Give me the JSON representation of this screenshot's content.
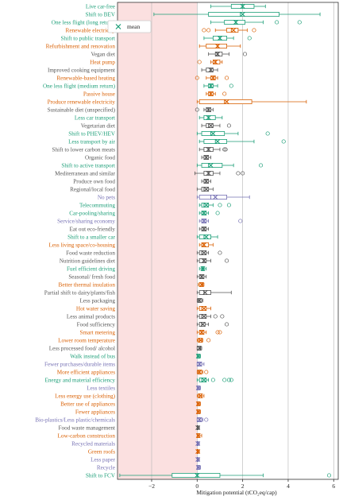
{
  "chart_data": {
    "type": "box",
    "title": "",
    "xlabel": "Mitigation potential (tCO₂eq/cap)",
    "ylabel": "",
    "xlim": [
      -3.5,
      6.2
    ],
    "x_ticks": [
      -2,
      0,
      2,
      4,
      6
    ],
    "grid": "vertical",
    "shaded_region": {
      "from": -3.5,
      "to": 0,
      "color": "#fbe0e0"
    },
    "legend": {
      "placement": "top-left",
      "entries": [
        {
          "label": "mean",
          "marker": "x"
        }
      ]
    },
    "series_colors": {
      "green": "#1b9e77",
      "orange": "#d95f02",
      "purple": "#7570b3",
      "dark": "#555555"
    },
    "rows": [
      {
        "label": "Live car-free",
        "color": "green",
        "q1": 1.5,
        "median": 2.0,
        "q3": 2.5,
        "wlo": 0.6,
        "whi": 3.0,
        "mean": 2.0,
        "outliers": []
      },
      {
        "label": "Shift to BEV",
        "color": "green",
        "q1": 0.5,
        "median": 1.9,
        "q3": 3.6,
        "wlo": -1.9,
        "whi": 5.4,
        "mean": 2.0,
        "outliers": []
      },
      {
        "label": "One less flight (long return)",
        "color": "green",
        "q1": 1.2,
        "median": 1.7,
        "q3": 2.1,
        "wlo": 0.6,
        "whi": 2.9,
        "mean": 1.7,
        "outliers": [
          3.5,
          4.5
        ]
      },
      {
        "label": "Renewable electricity",
        "color": "orange",
        "q1": 1.3,
        "median": 1.5,
        "q3": 1.8,
        "wlo": 0.8,
        "whi": 2.2,
        "mean": 1.6,
        "outliers": [
          0.3,
          0.5,
          2.5
        ]
      },
      {
        "label": "Shift to public transport",
        "color": "green",
        "q1": 0.7,
        "median": 1.0,
        "q3": 1.3,
        "wlo": 0.3,
        "whi": 1.6,
        "mean": 1.0,
        "outliers": [
          2.3
        ]
      },
      {
        "label": "Refurbishment and renovation",
        "color": "orange",
        "q1": 0.4,
        "median": 0.9,
        "q3": 1.3,
        "wlo": 0.1,
        "whi": 1.9,
        "mean": 0.9,
        "outliers": []
      },
      {
        "label": "Vegan diet",
        "color": "dark",
        "q1": 0.8,
        "median": 0.9,
        "q3": 1.1,
        "wlo": 0.5,
        "whi": 1.4,
        "mean": 0.9,
        "outliers": [
          2.1
        ]
      },
      {
        "label": "Heat pump",
        "color": "orange",
        "q1": 0.7,
        "median": 0.8,
        "q3": 1.0,
        "wlo": 0.6,
        "whi": 1.1,
        "mean": 0.8,
        "outliers": [
          0.1
        ]
      },
      {
        "label": "Improved cooking equipment",
        "color": "dark",
        "q1": 0.4,
        "median": 0.6,
        "q3": 0.7,
        "wlo": 0.2,
        "whi": 0.9,
        "mean": 0.6,
        "outliers": []
      },
      {
        "label": "Renewable-based heating",
        "color": "orange",
        "q1": 0.6,
        "median": 0.7,
        "q3": 0.8,
        "wlo": 0.4,
        "whi": 0.9,
        "mean": 0.7,
        "outliers": [
          0.0,
          1.3
        ]
      },
      {
        "label": "One less flight (medium return)",
        "color": "green",
        "q1": 0.5,
        "median": 0.6,
        "q3": 0.7,
        "wlo": 0.3,
        "whi": 0.9,
        "mean": 0.6,
        "outliers": [
          1.5
        ]
      },
      {
        "label": "Passive house",
        "color": "orange",
        "q1": 0.5,
        "median": 0.6,
        "q3": 0.7,
        "wlo": 0.4,
        "whi": 0.8,
        "mean": 0.6,
        "outliers": [
          1.2
        ]
      },
      {
        "label": "Produce renewable electricity",
        "color": "orange",
        "q1": 0.1,
        "median": 1.2,
        "q3": 2.4,
        "wlo": 0.0,
        "whi": 4.8,
        "mean": 1.3,
        "outliers": []
      },
      {
        "label": "Sustainable diet (unspecified)",
        "color": "dark",
        "q1": 0.4,
        "median": 0.5,
        "q3": 0.6,
        "wlo": 0.3,
        "whi": 0.7,
        "mean": 0.5,
        "outliers": [
          0.0
        ]
      },
      {
        "label": "Less car transport",
        "color": "green",
        "q1": 0.3,
        "median": 0.5,
        "q3": 0.8,
        "wlo": 0.1,
        "whi": 1.1,
        "mean": 0.5,
        "outliers": []
      },
      {
        "label": "Vegetarian diet",
        "color": "dark",
        "q1": 0.4,
        "median": 0.5,
        "q3": 0.7,
        "wlo": 0.2,
        "whi": 1.0,
        "mean": 0.6,
        "outliers": [
          1.4
        ]
      },
      {
        "label": "Shift to PHEV/HEV",
        "color": "green",
        "q1": 0.2,
        "median": 0.6,
        "q3": 1.2,
        "wlo": 0.0,
        "whi": 1.8,
        "mean": 0.7,
        "outliers": [
          3.1
        ]
      },
      {
        "label": "Less transport by air",
        "color": "green",
        "q1": 0.3,
        "median": 0.8,
        "q3": 1.3,
        "wlo": 0.1,
        "whi": 2.5,
        "mean": 0.9,
        "outliers": [
          3.8
        ]
      },
      {
        "label": "Shift to lower carbon meats",
        "color": "dark",
        "q1": 0.3,
        "median": 0.5,
        "q3": 0.7,
        "wlo": 0.1,
        "whi": 1.0,
        "mean": 0.5,
        "outliers": [
          1.2,
          1.25
        ]
      },
      {
        "label": "Organic food",
        "color": "dark",
        "q1": 0.3,
        "median": 0.4,
        "q3": 0.5,
        "wlo": 0.2,
        "whi": 0.6,
        "mean": 0.4,
        "outliers": []
      },
      {
        "label": "Shift to active transport",
        "color": "green",
        "q1": 0.2,
        "median": 0.5,
        "q3": 1.1,
        "wlo": 0.0,
        "whi": 1.6,
        "mean": 0.6,
        "outliers": [
          2.8
        ]
      },
      {
        "label": "Mediterranean and similar",
        "color": "dark",
        "q1": 0.3,
        "median": 0.5,
        "q3": 0.7,
        "wlo": -0.1,
        "whi": 1.0,
        "mean": 0.5,
        "outliers": [
          1.8,
          2.0
        ]
      },
      {
        "label": "Produce own food",
        "color": "dark",
        "q1": 0.3,
        "median": 0.4,
        "q3": 0.5,
        "wlo": 0.2,
        "whi": 0.6,
        "mean": 0.4,
        "outliers": []
      },
      {
        "label": "Regional/local food",
        "color": "dark",
        "q1": 0.2,
        "median": 0.3,
        "q3": 0.5,
        "wlo": 0.0,
        "whi": 0.7,
        "mean": 0.4,
        "outliers": []
      },
      {
        "label": "No pets",
        "color": "purple",
        "q1": 0.1,
        "median": 0.6,
        "q3": 1.3,
        "wlo": 0.0,
        "whi": 2.3,
        "mean": 0.8,
        "outliers": []
      },
      {
        "label": "Telecommuting",
        "color": "green",
        "q1": 0.2,
        "median": 0.3,
        "q3": 0.5,
        "wlo": 0.1,
        "whi": 0.7,
        "mean": 0.4,
        "outliers": [
          1.0,
          1.4
        ]
      },
      {
        "label": "Car-pooling/sharing",
        "color": "green",
        "q1": 0.2,
        "median": 0.3,
        "q3": 0.4,
        "wlo": 0.1,
        "whi": 0.5,
        "mean": 0.3,
        "outliers": [
          0.9
        ]
      },
      {
        "label": "Service/sharing economy",
        "color": "purple",
        "q1": 0.2,
        "median": 0.3,
        "q3": 0.4,
        "wlo": 0.1,
        "whi": 0.5,
        "mean": 0.3,
        "outliers": [
          1.9
        ]
      },
      {
        "label": "Eat out eco-friendly",
        "color": "dark",
        "q1": 0.2,
        "median": 0.3,
        "q3": 0.4,
        "wlo": 0.1,
        "whi": 0.5,
        "mean": 0.3,
        "outliers": []
      },
      {
        "label": "Shift to a smaller car",
        "color": "green",
        "q1": 0.1,
        "median": 0.3,
        "q3": 0.6,
        "wlo": 0.0,
        "whi": 0.9,
        "mean": 0.4,
        "outliers": []
      },
      {
        "label": "Less living space/co-housing",
        "color": "orange",
        "q1": 0.2,
        "median": 0.3,
        "q3": 0.5,
        "wlo": 0.1,
        "whi": 0.7,
        "mean": 0.3,
        "outliers": []
      },
      {
        "label": "Food waste reduction",
        "color": "dark",
        "q1": 0.1,
        "median": 0.2,
        "q3": 0.4,
        "wlo": 0.0,
        "whi": 0.5,
        "mean": 0.3,
        "outliers": [
          1.0
        ]
      },
      {
        "label": "Nutrition guidelines diet",
        "color": "dark",
        "q1": 0.1,
        "median": 0.3,
        "q3": 0.4,
        "wlo": 0.0,
        "whi": 0.6,
        "mean": 0.3,
        "outliers": [
          1.3
        ]
      },
      {
        "label": "Fuel efficient driving",
        "color": "green",
        "q1": 0.2,
        "median": 0.25,
        "q3": 0.3,
        "wlo": 0.1,
        "whi": 0.4,
        "mean": 0.25,
        "outliers": []
      },
      {
        "label": "Seasonal/ fresh food",
        "color": "dark",
        "q1": 0.1,
        "median": 0.2,
        "q3": 0.3,
        "wlo": 0.0,
        "whi": 0.4,
        "mean": 0.2,
        "outliers": []
      },
      {
        "label": "Better thermal insulation",
        "color": "orange",
        "q1": 0.1,
        "median": 0.2,
        "q3": 0.25,
        "wlo": 0.05,
        "whi": 0.3,
        "mean": 0.2,
        "outliers": []
      },
      {
        "label": "Partial shift to dairy/plants/fish",
        "color": "dark",
        "q1": 0.1,
        "median": 0.3,
        "q3": 0.6,
        "wlo": 0.0,
        "whi": 1.5,
        "mean": 0.35,
        "outliers": []
      },
      {
        "label": "Less packaging",
        "color": "dark",
        "q1": 0.05,
        "median": 0.1,
        "q3": 0.2,
        "wlo": 0.0,
        "whi": 0.25,
        "mean": 0.1,
        "outliers": []
      },
      {
        "label": "Hot water saving",
        "color": "orange",
        "q1": 0.1,
        "median": 0.2,
        "q3": 0.4,
        "wlo": 0.0,
        "whi": 0.6,
        "mean": 0.3,
        "outliers": []
      },
      {
        "label": "Less animal products",
        "color": "dark",
        "q1": 0.1,
        "median": 0.2,
        "q3": 0.4,
        "wlo": 0.0,
        "whi": 0.6,
        "mean": 0.3,
        "outliers": [
          0.8,
          1.1
        ]
      },
      {
        "label": "Food sufficiency",
        "color": "dark",
        "q1": 0.1,
        "median": 0.2,
        "q3": 0.35,
        "wlo": 0.0,
        "whi": 0.5,
        "mean": 0.25,
        "outliers": [
          1.3
        ]
      },
      {
        "label": "Smart metering",
        "color": "orange",
        "q1": 0.1,
        "median": 0.2,
        "q3": 0.3,
        "wlo": 0.0,
        "whi": 0.4,
        "mean": 0.2,
        "outliers": [
          0.9,
          1.0
        ]
      },
      {
        "label": "Lower room temperature",
        "color": "orange",
        "q1": 0.05,
        "median": 0.1,
        "q3": 0.2,
        "wlo": 0.0,
        "whi": 0.25,
        "mean": 0.15,
        "outliers": [
          0.5
        ]
      },
      {
        "label": "Less processed food/ alcohol",
        "color": "dark",
        "q1": 0.0,
        "median": 0.1,
        "q3": 0.15,
        "wlo": 0.0,
        "whi": 0.2,
        "mean": 0.1,
        "outliers": []
      },
      {
        "label": "Walk instead of bus",
        "color": "green",
        "q1": 0.0,
        "median": 0.05,
        "q3": 0.1,
        "wlo": 0.0,
        "whi": 0.15,
        "mean": 0.05,
        "outliers": []
      },
      {
        "label": "Fewer purchases/durable items",
        "color": "purple",
        "q1": 0.0,
        "median": 0.1,
        "q3": 0.2,
        "wlo": 0.0,
        "whi": 0.3,
        "mean": 0.1,
        "outliers": []
      },
      {
        "label": "More efficient appliances",
        "color": "orange",
        "q1": 0.05,
        "median": 0.1,
        "q3": 0.2,
        "wlo": 0.0,
        "whi": 0.25,
        "mean": 0.1,
        "outliers": [
          0.4
        ]
      },
      {
        "label": "Energy and material efficiency",
        "color": "green",
        "q1": 0.1,
        "median": 0.2,
        "q3": 0.4,
        "wlo": 0.0,
        "whi": 0.5,
        "mean": 0.3,
        "outliers": [
          0.7,
          1.2,
          1.4,
          1.5
        ]
      },
      {
        "label": "Less textiles",
        "color": "purple",
        "q1": 0.0,
        "median": 0.05,
        "q3": 0.1,
        "wlo": 0.0,
        "whi": 0.15,
        "mean": 0.05,
        "outliers": []
      },
      {
        "label": "Less energy use (clothing)",
        "color": "orange",
        "q1": 0.05,
        "median": 0.1,
        "q3": 0.2,
        "wlo": 0.0,
        "whi": 0.3,
        "mean": 0.15,
        "outliers": []
      },
      {
        "label": "Better use of appliances",
        "color": "orange",
        "q1": 0.0,
        "median": 0.05,
        "q3": 0.1,
        "wlo": 0.0,
        "whi": 0.15,
        "mean": 0.05,
        "outliers": []
      },
      {
        "label": "Fewer appliances",
        "color": "orange",
        "q1": 0.0,
        "median": 0.05,
        "q3": 0.1,
        "wlo": 0.0,
        "whi": 0.15,
        "mean": 0.05,
        "outliers": []
      },
      {
        "label": "Bio-plastics/Less plastic/chemicals",
        "color": "purple",
        "q1": 0.0,
        "median": 0.1,
        "q3": 0.2,
        "wlo": 0.0,
        "whi": 0.25,
        "mean": 0.1,
        "outliers": [
          0.4
        ]
      },
      {
        "label": "Food waste management",
        "color": "dark",
        "q1": 0.0,
        "median": 0.02,
        "q3": 0.05,
        "wlo": 0.0,
        "whi": 0.1,
        "mean": 0.03,
        "outliers": []
      },
      {
        "label": "Low-carbon construction",
        "color": "orange",
        "q1": 0.0,
        "median": 0.05,
        "q3": 0.1,
        "wlo": 0.0,
        "whi": 0.2,
        "mean": 0.05,
        "outliers": []
      },
      {
        "label": "Recycled materials",
        "color": "purple",
        "q1": 0.0,
        "median": 0.02,
        "q3": 0.05,
        "wlo": 0.0,
        "whi": 0.1,
        "mean": 0.03,
        "outliers": []
      },
      {
        "label": "Green roofs",
        "color": "orange",
        "q1": 0.0,
        "median": 0.02,
        "q3": 0.05,
        "wlo": 0.0,
        "whi": 0.1,
        "mean": 0.03,
        "outliers": []
      },
      {
        "label": "Less paper",
        "color": "purple",
        "q1": 0.0,
        "median": 0.02,
        "q3": 0.05,
        "wlo": 0.0,
        "whi": 0.1,
        "mean": 0.03,
        "outliers": []
      },
      {
        "label": "Recycle",
        "color": "purple",
        "q1": 0.0,
        "median": 0.05,
        "q3": 0.1,
        "wlo": 0.0,
        "whi": 0.15,
        "mean": 0.05,
        "outliers": []
      },
      {
        "label": "Shift to FCV",
        "color": "green",
        "q1": -1.1,
        "median": 0.0,
        "q3": 1.0,
        "wlo": -3.4,
        "whi": 2.9,
        "mean": 0.0,
        "outliers": [
          5.8
        ]
      }
    ]
  }
}
